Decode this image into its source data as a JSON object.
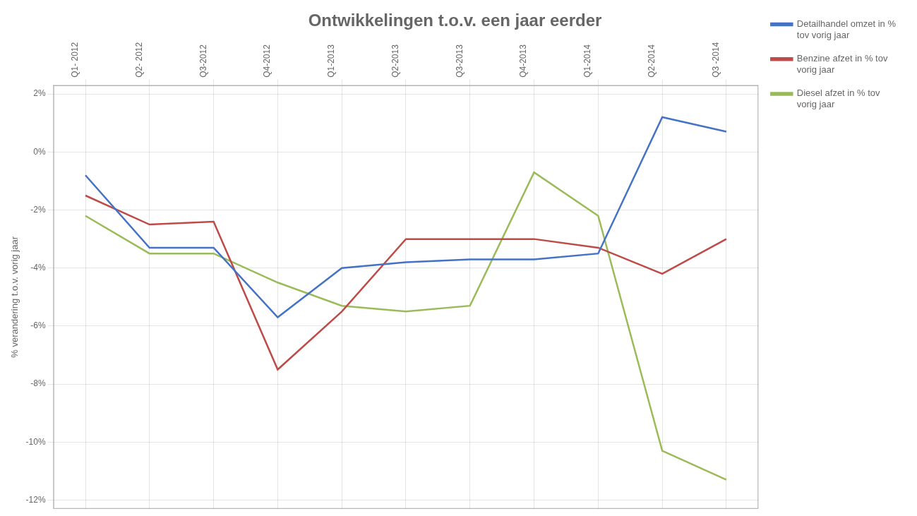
{
  "chart_data": {
    "type": "line",
    "title": "Ontwikkelingen t.o.v. een jaar eerder",
    "ylabel": "% verandering t.o.v. vorig jaar",
    "categories": [
      "Q1- 2012",
      "Q2- 2012",
      "Q3-2012",
      "Q4-2012",
      "Q1-2013",
      "Q2-2013",
      "Q3-2013",
      "Q4-2013",
      "Q1-2014",
      "Q2-2014",
      "Q3 -2014"
    ],
    "series": [
      {
        "name": "Detailhandel omzet in %\ntov vorig jaar",
        "color": "#4472C4",
        "values": [
          -0.8,
          -3.3,
          -3.3,
          -5.7,
          -4.0,
          -3.8,
          -3.7,
          -3.7,
          -3.5,
          1.2,
          0.7
        ]
      },
      {
        "name": "Benzine afzet in % tov\nvorig jaar",
        "color": "#BE4B48",
        "values": [
          -1.5,
          -2.5,
          -2.4,
          -7.5,
          -5.5,
          -3.0,
          -3.0,
          -3.0,
          -3.3,
          -4.2,
          -3.0
        ]
      },
      {
        "name": "Diesel afzet in % tov\nvorig jaar",
        "color": "#9BBB59",
        "values": [
          -2.2,
          -3.5,
          -3.5,
          -4.5,
          -5.3,
          -5.5,
          -5.3,
          -0.7,
          -2.2,
          -10.3,
          -11.3
        ]
      }
    ],
    "ylim": [
      -12.3,
      2.3
    ],
    "yticks": [
      {
        "value": 2,
        "label": "2%"
      },
      {
        "value": 0,
        "label": "0%"
      },
      {
        "value": -2,
        "label": "-2%"
      },
      {
        "value": -4,
        "label": "-4%"
      },
      {
        "value": -6,
        "label": "-6%"
      },
      {
        "value": -8,
        "label": "-8%"
      },
      {
        "value": -10,
        "label": "-10%"
      },
      {
        "value": -12,
        "label": "-12%"
      }
    ],
    "grid": true,
    "legend": "right"
  }
}
